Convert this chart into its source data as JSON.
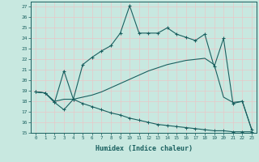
{
  "xlabel": "Humidex (Indice chaleur)",
  "bg_color": "#c8e8e0",
  "line_color": "#1a6060",
  "grid_color": "#e8c8c8",
  "xlim": [
    -0.5,
    23.5
  ],
  "ylim": [
    15,
    27.5
  ],
  "xticks": [
    0,
    1,
    2,
    3,
    4,
    5,
    6,
    7,
    8,
    9,
    10,
    11,
    12,
    13,
    14,
    15,
    16,
    17,
    18,
    19,
    20,
    21,
    22,
    23
  ],
  "yticks": [
    15,
    16,
    17,
    18,
    19,
    20,
    21,
    22,
    23,
    24,
    25,
    26,
    27
  ],
  "line1_x": [
    0,
    1,
    2,
    3,
    4,
    5,
    6,
    7,
    8,
    9,
    10,
    11,
    12,
    13,
    14,
    15,
    16,
    17,
    18,
    19,
    20,
    21,
    22,
    23
  ],
  "line1_y": [
    18.9,
    18.8,
    17.9,
    20.9,
    18.2,
    21.5,
    22.2,
    22.8,
    23.3,
    24.5,
    27.1,
    24.5,
    24.5,
    24.5,
    25.0,
    24.4,
    24.1,
    23.8,
    24.4,
    21.3,
    24.0,
    17.8,
    18.0,
    15.3
  ],
  "line2_x": [
    0,
    1,
    2,
    3,
    4,
    5,
    6,
    7,
    8,
    9,
    10,
    11,
    12,
    13,
    14,
    15,
    16,
    17,
    18,
    19,
    20,
    21,
    22,
    23
  ],
  "line2_y": [
    18.9,
    18.8,
    18.0,
    18.2,
    18.2,
    18.4,
    18.6,
    18.9,
    19.3,
    19.7,
    20.1,
    20.5,
    20.9,
    21.2,
    21.5,
    21.7,
    21.9,
    22.0,
    22.1,
    21.5,
    18.4,
    17.9,
    18.0,
    15.3
  ],
  "line3_x": [
    0,
    1,
    2,
    3,
    4,
    5,
    6,
    7,
    8,
    9,
    10,
    11,
    12,
    13,
    14,
    15,
    16,
    17,
    18,
    19,
    20,
    21,
    22,
    23
  ],
  "line3_y": [
    18.9,
    18.8,
    17.9,
    17.2,
    18.2,
    17.8,
    17.5,
    17.2,
    16.9,
    16.7,
    16.4,
    16.2,
    16.0,
    15.8,
    15.7,
    15.6,
    15.5,
    15.4,
    15.3,
    15.2,
    15.2,
    15.1,
    15.1,
    15.1
  ]
}
